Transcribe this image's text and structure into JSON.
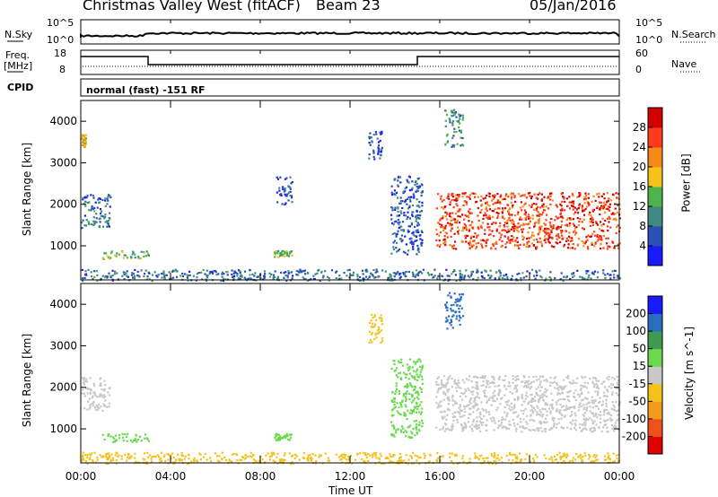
{
  "header": {
    "title": "Christmas Valley West (fitACF)",
    "beam": "Beam 23",
    "date": "05/Jan/2016"
  },
  "top_panels": {
    "nsky_label": "N.Sky",
    "nsky_tick_top": "10^5",
    "nsky_tick_bottom": "10^0",
    "nsearch_label": "N.Search",
    "nsearch_tick_top": "10^5",
    "nsearch_tick_bottom": "10^0",
    "freq_label_line1": "Freq.",
    "freq_label_line2": "[MHz]",
    "freq_tick_top": "18",
    "freq_tick_bottom": "8",
    "nave_label": "Nave",
    "nave_tick_top": "60",
    "nave_tick_bottom": "0",
    "cpid_label": "CPID",
    "cpid_text": "normal (fast) -151 RF"
  },
  "chart_data": [
    {
      "type": "heatmap",
      "panel": "power",
      "ylabel": "Slant Range [km]",
      "xlabel": "Time UT",
      "xlim": [
        "00:00",
        "24:00"
      ],
      "ylim": [
        180,
        4500
      ],
      "yticks": [
        1000,
        2000,
        3000,
        4000
      ],
      "colorbar": {
        "label": "Power [dB]",
        "ticks": [
          "4",
          "8",
          "12",
          "16",
          "20",
          "24",
          "28"
        ],
        "colors": [
          "#1a1aff",
          "#2a4fb5",
          "#3e8a80",
          "#4db34d",
          "#f5c21b",
          "#f58a1b",
          "#ff3b1b",
          "#d40000"
        ]
      },
      "regions": [
        {
          "t0": 0.0,
          "t1": 1.3,
          "r0": 1450,
          "r1": 2250,
          "value": 8
        },
        {
          "t0": 0.0,
          "t1": 0.2,
          "r0": 3400,
          "r1": 3700,
          "value": 20
        },
        {
          "t0": 0.9,
          "t1": 3.0,
          "r0": 700,
          "r1": 900,
          "value": 14
        },
        {
          "t0": 8.6,
          "t1": 9.4,
          "r0": 750,
          "r1": 900,
          "value": 14
        },
        {
          "t0": 8.7,
          "t1": 9.4,
          "r0": 2000,
          "r1": 2700,
          "value": 6
        },
        {
          "t0": 12.8,
          "t1": 13.4,
          "r0": 3100,
          "r1": 3800,
          "value": 6
        },
        {
          "t0": 13.8,
          "t1": 15.2,
          "r0": 800,
          "r1": 2700,
          "value": 6
        },
        {
          "t0": 15.8,
          "t1": 24.0,
          "r0": 950,
          "r1": 2300,
          "value": 26
        },
        {
          "t0": 16.2,
          "t1": 17.0,
          "r0": 3400,
          "r1": 4300,
          "value": 10
        },
        {
          "t0": 0.0,
          "t1": 24.0,
          "r0": 180,
          "r1": 450,
          "value": 8
        }
      ]
    },
    {
      "type": "heatmap",
      "panel": "velocity",
      "ylabel": "Slant Range [km]",
      "xlabel": "Time UT",
      "xlim": [
        "00:00",
        "24:00"
      ],
      "ylim": [
        180,
        4500
      ],
      "yticks": [
        1000,
        2000,
        3000,
        4000
      ],
      "colorbar": {
        "label": "Velocity [m s^-1]",
        "ticks": [
          "-200",
          "-100",
          "-50",
          "-15",
          "15",
          "50",
          "100",
          "200"
        ],
        "colors": [
          "#e00000",
          "#f0501b",
          "#f59b1b",
          "#f5c21b",
          "#c8c8c8",
          "#6ad94d",
          "#3e9a50",
          "#2a6fbf",
          "#1a1aff"
        ]
      },
      "regions": [
        {
          "t0": 0.0,
          "t1": 1.3,
          "r0": 1450,
          "r1": 2250,
          "value": 0
        },
        {
          "t0": 0.9,
          "t1": 3.0,
          "r0": 700,
          "r1": 900,
          "value": 30
        },
        {
          "t0": 8.6,
          "t1": 9.4,
          "r0": 750,
          "r1": 900,
          "value": 30
        },
        {
          "t0": 12.8,
          "t1": 13.4,
          "r0": 3100,
          "r1": 3800,
          "value": -30
        },
        {
          "t0": 13.8,
          "t1": 15.2,
          "r0": 800,
          "r1": 2700,
          "value": 30
        },
        {
          "t0": 15.8,
          "t1": 24.0,
          "r0": 950,
          "r1": 2300,
          "value": 0
        },
        {
          "t0": 16.2,
          "t1": 17.0,
          "r0": 3400,
          "r1": 4300,
          "value": 120
        },
        {
          "t0": 0.0,
          "t1": 24.0,
          "r0": 180,
          "r1": 450,
          "value": -30
        }
      ]
    }
  ],
  "x_axis": {
    "ticks": [
      "00:00",
      "04:00",
      "08:00",
      "12:00",
      "16:00",
      "20:00",
      "00:00"
    ],
    "label": "Time UT"
  }
}
